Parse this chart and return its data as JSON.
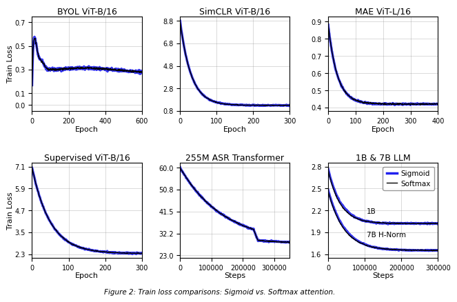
{
  "plots": [
    {
      "title": "BYOL ViT-B/16",
      "xlabel": "Epoch",
      "ylabel": "Train Loss",
      "xlim": [
        0,
        600
      ],
      "ylim": [
        -0.05,
        0.75
      ],
      "yticks": [
        -0.0,
        0.1,
        0.3,
        0.5,
        0.7
      ],
      "xticks": [
        0,
        200,
        400,
        600
      ],
      "x_max": 600,
      "curve_type": "byol"
    },
    {
      "title": "SimCLR ViT-B/16",
      "xlabel": "Epoch",
      "ylabel": "",
      "xlim": [
        0,
        300
      ],
      "ylim": [
        0.8,
        9.2
      ],
      "yticks": [
        0.8,
        2.8,
        4.8,
        6.8,
        8.8
      ],
      "xticks": [
        0,
        100,
        200,
        300
      ],
      "x_max": 300,
      "curve_type": "simclr"
    },
    {
      "title": "MAE ViT-L/16",
      "xlabel": "Epoch",
      "ylabel": "",
      "xlim": [
        0,
        400
      ],
      "ylim": [
        0.38,
        0.93
      ],
      "yticks": [
        0.4,
        0.5,
        0.6,
        0.7,
        0.8,
        0.9
      ],
      "xticks": [
        0,
        100,
        200,
        300,
        400
      ],
      "x_max": 400,
      "curve_type": "mae"
    },
    {
      "title": "Supervised ViT-B/16",
      "xlabel": "Epoch",
      "ylabel": "Train Loss",
      "xlim": [
        0,
        300
      ],
      "ylim": [
        2.1,
        7.3
      ],
      "yticks": [
        2.3,
        3.5,
        4.7,
        5.9,
        7.1
      ],
      "xticks": [
        0,
        100,
        200,
        300
      ],
      "x_max": 300,
      "curve_type": "supervised"
    },
    {
      "title": "255M ASR Transformer",
      "xlabel": "Steps",
      "ylabel": "",
      "xlim": [
        0,
        350000
      ],
      "ylim": [
        22.0,
        62.0
      ],
      "yticks": [
        23.0,
        32.2,
        41.5,
        50.8,
        60.0
      ],
      "xticks": [
        0,
        100000,
        200000,
        300000
      ],
      "x_max": 350000,
      "curve_type": "asr"
    },
    {
      "title": "1B & 7B LLM",
      "xlabel": "Steps",
      "ylabel": "",
      "xlim": [
        0,
        300000
      ],
      "ylim": [
        1.55,
        2.85
      ],
      "yticks": [
        1.6,
        1.9,
        2.2,
        2.5,
        2.8
      ],
      "xticks": [
        0,
        100000,
        200000,
        300000
      ],
      "x_max": 300000,
      "curve_type": "llm"
    }
  ],
  "sigmoid_color": "#2020ee",
  "sigmoid_lw": 2.5,
  "softmax_color": "black",
  "softmax_lw": 1.0,
  "figure_caption": "Figure 2: Train loss comparisons: Sigmoid vs. Softmax attention.",
  "legend_labels": [
    "Sigmoid",
    "Softmax"
  ],
  "annotation_1b": "1B",
  "annotation_7b": "7B H-Norm"
}
